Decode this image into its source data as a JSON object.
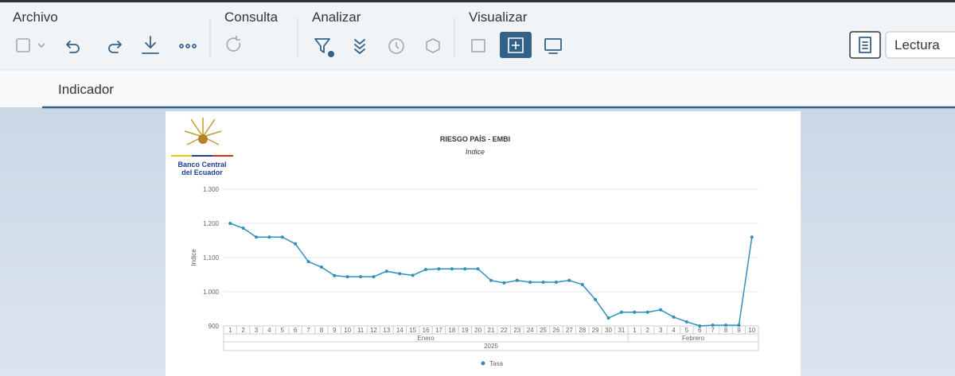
{
  "toolbar": {
    "groups": [
      "Archivo",
      "Consulta",
      "Analizar",
      "Visualizar"
    ],
    "mode": "Lectura"
  },
  "tabs": [
    "Indicador"
  ],
  "logo": {
    "lines": [
      "Banco Central",
      "del Ecuador"
    ]
  },
  "chart_data": {
    "type": "line",
    "title": "RIESGO PAÍS - EMBI",
    "subtitle": "Indice",
    "y_label": "Indice",
    "categories": [
      "1",
      "2",
      "3",
      "4",
      "5",
      "6",
      "7",
      "8",
      "9",
      "10",
      "11",
      "12",
      "13",
      "14",
      "15",
      "16",
      "17",
      "18",
      "19",
      "20",
      "21",
      "22",
      "23",
      "24",
      "25",
      "26",
      "27",
      "28",
      "29",
      "30",
      "31",
      "1",
      "2",
      "3",
      "4",
      "5",
      "6",
      "7",
      "8",
      "9",
      "10"
    ],
    "category_groups": [
      "Enero",
      "Febrero"
    ],
    "category_super_group": "2025",
    "series": [
      {
        "name": "Tasa",
        "color": "#3190b9",
        "values": [
          1200,
          1186,
          1160,
          1160,
          1160,
          1140,
          1088,
          1072,
          1047,
          1044,
          1044,
          1044,
          1060,
          1053,
          1048,
          1065,
          1067,
          1067,
          1067,
          1067,
          1033,
          1026,
          1033,
          1028,
          1028,
          1028,
          1033,
          1021,
          977,
          923,
          940,
          940,
          940,
          947,
          926,
          912,
          900,
          902,
          902,
          902,
          1160
        ]
      }
    ],
    "ylim": [
      900,
      1300
    ],
    "yticks": [
      900,
      {
        "value": 1000,
        "label": "1.000"
      },
      {
        "value": 1100,
        "label": "1.100"
      },
      {
        "value": 1200,
        "label": "1.200"
      },
      {
        "value": 1300,
        "label": "1.300"
      }
    ],
    "grid": true,
    "legend": "bottom"
  }
}
